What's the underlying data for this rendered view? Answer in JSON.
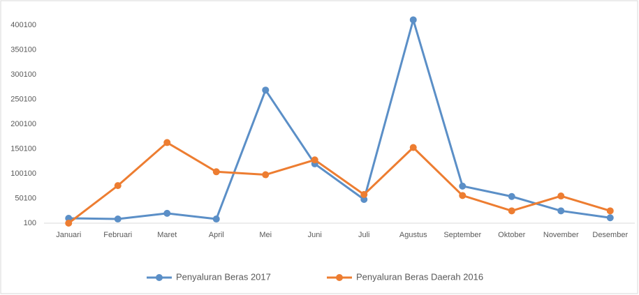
{
  "chart_data": {
    "type": "line",
    "categories": [
      "Januari",
      "Februari",
      "Maret",
      "April",
      "Mei",
      "Juni",
      "Juli",
      "Agustus",
      "September",
      "Oktober",
      "November",
      "Desember"
    ],
    "series": [
      {
        "name": "Penyaluran Beras 2017",
        "color": "#5b8fc7",
        "values": [
          10000,
          8500,
          20000,
          8500,
          269000,
          120000,
          48000,
          411000,
          75000,
          54000,
          25000,
          11000
        ]
      },
      {
        "name": "Penyaluran Beras Daerah 2016",
        "color": "#ed7d31",
        "values": [
          100,
          76000,
          163000,
          104000,
          98000,
          128000,
          58000,
          153000,
          56000,
          25000,
          55000,
          25000
        ]
      }
    ],
    "ylim": [
      100,
      420100
    ],
    "yticks": [
      100,
      50100,
      100100,
      150100,
      200100,
      250100,
      300100,
      350100,
      400100
    ],
    "grid": false,
    "legend": "bottom"
  }
}
